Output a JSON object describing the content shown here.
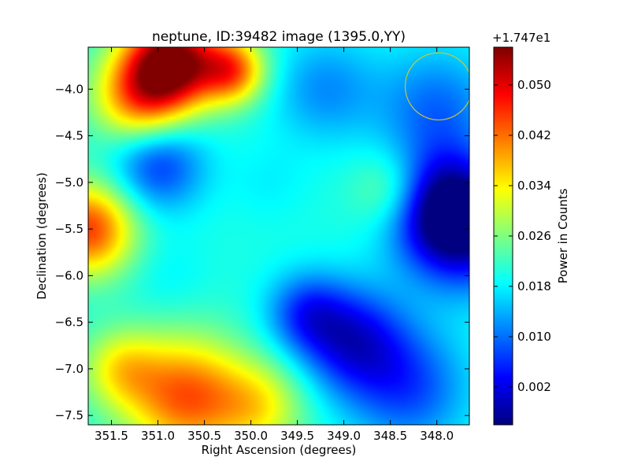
{
  "chart_data": {
    "type": "heatmap",
    "title": "neptune, ID:39482 image (1395.0,YY)",
    "xlabel": "Right Ascension (degrees)",
    "ylabel": "Declination (degrees)",
    "xlim": [
      351.75,
      347.65
    ],
    "ylim": [
      -7.6,
      -3.55
    ],
    "x_ticks": [
      351.5,
      351.0,
      350.5,
      350.0,
      349.5,
      349.0,
      348.5,
      348.0
    ],
    "x_tick_labels": [
      "351.5",
      "351.0",
      "350.5",
      "350.0",
      "349.5",
      "349.0",
      "348.5",
      "348.0"
    ],
    "y_ticks": [
      -4.0,
      -4.5,
      -5.0,
      -5.5,
      -6.0,
      -6.5,
      -7.0,
      -7.5
    ],
    "y_tick_labels": [
      "−4.0",
      "−4.5",
      "−5.0",
      "−5.5",
      "−6.0",
      "−6.5",
      "−7.0",
      "−7.5"
    ],
    "colormap": "jet",
    "colorbar": {
      "label": "Power in Counts",
      "offset_label": "+1.747e1",
      "range": [
        -0.004,
        0.056
      ],
      "ticks": [
        0.002,
        0.01,
        0.018,
        0.026,
        0.034,
        0.042,
        0.05
      ],
      "tick_labels": [
        "0.002",
        "0.010",
        "0.018",
        "0.026",
        "0.034",
        "0.042",
        "0.050"
      ]
    },
    "grid": false,
    "background_level": 0.02,
    "features": [
      {
        "ra": 350.85,
        "dec": -3.7,
        "value": 0.056,
        "sigma": 0.35
      },
      {
        "ra": 350.2,
        "dec": -3.8,
        "value": 0.042,
        "sigma": 0.25
      },
      {
        "ra": 351.2,
        "dec": -4.1,
        "value": 0.04,
        "sigma": 0.35
      },
      {
        "ra": 351.75,
        "dec": -5.5,
        "value": 0.045,
        "sigma": 0.35
      },
      {
        "ra": 350.7,
        "dec": -7.3,
        "value": 0.043,
        "sigma": 0.45
      },
      {
        "ra": 351.4,
        "dec": -7.0,
        "value": 0.032,
        "sigma": 0.3
      },
      {
        "ra": 349.9,
        "dec": -7.4,
        "value": 0.032,
        "sigma": 0.35
      },
      {
        "ra": 348.45,
        "dec": -5.1,
        "value": 0.03,
        "sigma": 0.3
      },
      {
        "ra": 351.0,
        "dec": -4.8,
        "value": 0.006,
        "sigma": 0.35
      },
      {
        "ra": 349.2,
        "dec": -4.0,
        "value": 0.012,
        "sigma": 0.4
      },
      {
        "ra": 348.0,
        "dec": -4.2,
        "value": 0.01,
        "sigma": 0.45
      },
      {
        "ra": 347.7,
        "dec": -5.5,
        "value": -0.002,
        "sigma": 0.45
      },
      {
        "ra": 348.0,
        "dec": -5.2,
        "value": 0.004,
        "sigma": 0.4
      },
      {
        "ra": 348.9,
        "dec": -6.7,
        "value": 0.003,
        "sigma": 0.4
      },
      {
        "ra": 349.4,
        "dec": -6.4,
        "value": 0.008,
        "sigma": 0.3
      },
      {
        "ra": 348.3,
        "dec": -7.2,
        "value": 0.008,
        "sigma": 0.45
      },
      {
        "ra": 349.8,
        "dec": -5.0,
        "value": 0.018,
        "sigma": 0.3
      },
      {
        "ra": 350.9,
        "dec": -6.0,
        "value": 0.018,
        "sigma": 0.3
      }
    ],
    "annotations": [
      {
        "type": "circle",
        "ra": 347.98,
        "dec": -3.97,
        "radius_deg": 0.36,
        "color": "#c8c83a"
      }
    ]
  }
}
